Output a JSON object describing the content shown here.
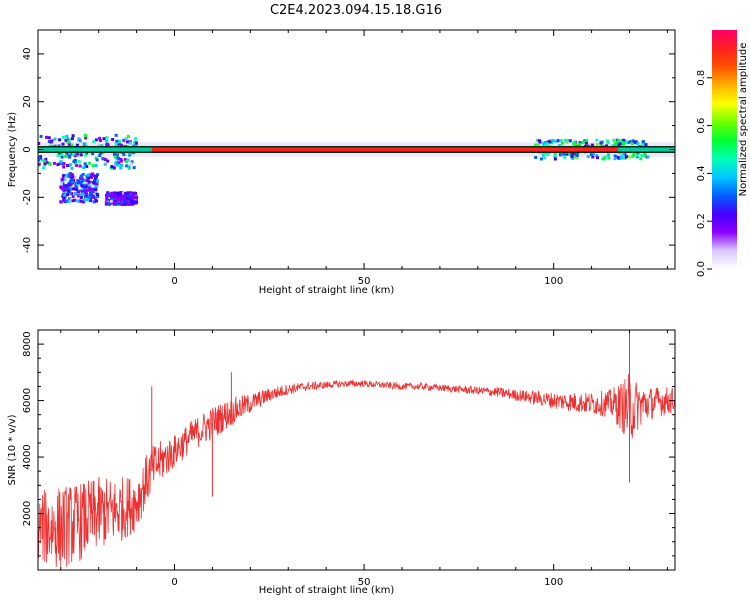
{
  "title": "C2E4.2023.094.15.18.G16",
  "chart_data": [
    {
      "type": "heatmap",
      "xlabel": "Height of straight line (km)",
      "ylabel": "Frequency (Hz)",
      "xlim": [
        -36,
        132
      ],
      "ylim": [
        -50,
        50
      ],
      "xticks": [
        0,
        50,
        100
      ],
      "yticks": [
        40,
        20,
        0,
        -20,
        -40
      ],
      "carrier": {
        "frequency_hz": 0,
        "x_range": [
          -36,
          132
        ],
        "dominant_amplitude_x_range": [
          -6,
          117
        ],
        "dominant_amplitude": 0.95
      },
      "scatter_clusters": [
        {
          "x_range": [
            -36,
            -10
          ],
          "frequency_range": [
            -8,
            6
          ],
          "amplitude_range": [
            0.1,
            0.55
          ]
        },
        {
          "x_range": [
            -30,
            -20
          ],
          "frequency_range": [
            -22,
            -10
          ],
          "amplitude_range": [
            0.1,
            0.4
          ]
        },
        {
          "x_range": [
            -18,
            -10
          ],
          "frequency_range": [
            -23,
            -18
          ],
          "amplitude_range": [
            0.1,
            0.3
          ]
        },
        {
          "x_range": [
            95,
            125
          ],
          "frequency_range": [
            -4,
            4
          ],
          "amplitude_range": [
            0.2,
            0.6
          ]
        }
      ],
      "colorbar": {
        "label": "Normalized spectral amplitude",
        "range": [
          0.0,
          1.0
        ],
        "ticks": [
          "0.0",
          "0.2",
          "0.4",
          "0.6",
          "0.8"
        ],
        "colors": [
          "#ffffff",
          "#d8c8ff",
          "#8a00ff",
          "#4400ff",
          "#0060ff",
          "#00c8ff",
          "#00ffb0",
          "#00ff30",
          "#70ff00",
          "#ffff00",
          "#ffb000",
          "#ff5000",
          "#ff2020",
          "#ff0066"
        ]
      }
    },
    {
      "type": "line",
      "xlabel": "Height of straight line (km)",
      "ylabel": "SNR (10 * v/v)",
      "xlim": [
        -36,
        132
      ],
      "ylim": [
        0,
        8500
      ],
      "xticks": [
        0,
        50,
        100
      ],
      "yticks": [
        2000,
        4000,
        6000,
        8000
      ],
      "color": "#ef3030",
      "series": [
        {
          "x": [
            -36,
            -30,
            -25,
            -20,
            -15,
            -10,
            -7,
            -5,
            0,
            5,
            10,
            15,
            20,
            25,
            30,
            35,
            40,
            45,
            50,
            55,
            60,
            65,
            70,
            75,
            80,
            85,
            90,
            95,
            100,
            105,
            110,
            115,
            118,
            120,
            122,
            125,
            130,
            132
          ],
          "mean": [
            1500,
            1500,
            1700,
            2000,
            2100,
            2400,
            3300,
            3700,
            4200,
            4800,
            5200,
            5600,
            5900,
            6200,
            6400,
            6500,
            6550,
            6600,
            6600,
            6550,
            6500,
            6500,
            6450,
            6400,
            6350,
            6300,
            6200,
            6100,
            6000,
            5950,
            5900,
            5900,
            5800,
            5700,
            5800,
            5900,
            6000,
            6000
          ],
          "spread": [
            1300,
            1500,
            1400,
            1300,
            1200,
            1000,
            900,
            800,
            600,
            550,
            600,
            500,
            350,
            250,
            200,
            150,
            130,
            120,
            120,
            120,
            120,
            120,
            120,
            130,
            150,
            180,
            200,
            250,
            300,
            350,
            400,
            500,
            900,
            1300,
            900,
            600,
            500,
            500
          ]
        }
      ],
      "spikes": [
        {
          "x": -6,
          "y": 6500
        },
        {
          "x": 10,
          "y": 2600
        },
        {
          "x": 15,
          "y": 7000
        },
        {
          "x": 120,
          "y": 8500
        },
        {
          "x": 120,
          "y": 3100
        }
      ]
    }
  ]
}
